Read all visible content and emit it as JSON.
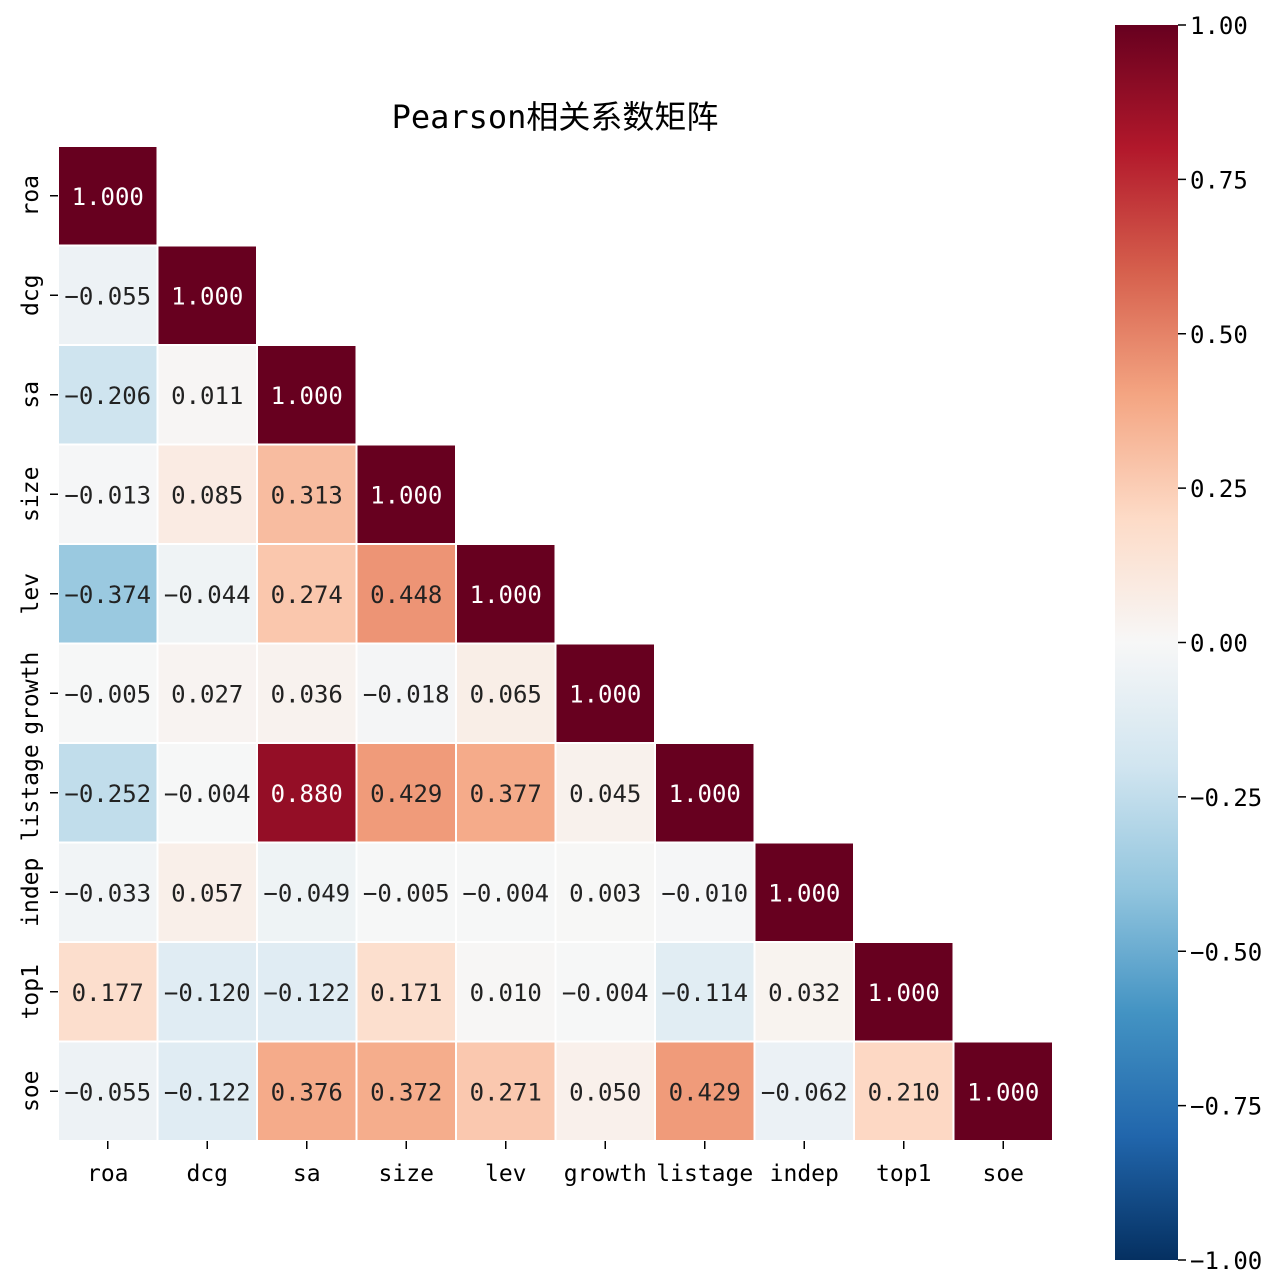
{
  "chart_data": {
    "type": "heatmap",
    "title": "Pearson相关系数矩阵",
    "variables": [
      "roa",
      "dcg",
      "sa",
      "size",
      "lev",
      "growth",
      "listage",
      "indep",
      "top1",
      "soe"
    ],
    "mask": "upper-triangle",
    "values": [
      [
        1.0
      ],
      [
        -0.055,
        1.0
      ],
      [
        -0.206,
        0.011,
        1.0
      ],
      [
        -0.013,
        0.085,
        0.313,
        1.0
      ],
      [
        -0.374,
        -0.044,
        0.274,
        0.448,
        1.0
      ],
      [
        -0.005,
        0.027,
        0.036,
        -0.018,
        0.065,
        1.0
      ],
      [
        -0.252,
        -0.004,
        0.88,
        0.429,
        0.377,
        0.045,
        1.0
      ],
      [
        -0.033,
        0.057,
        -0.049,
        -0.005,
        -0.004,
        0.003,
        -0.01,
        1.0
      ],
      [
        0.177,
        -0.12,
        -0.122,
        0.171,
        0.01,
        -0.004,
        -0.114,
        0.032,
        1.0
      ],
      [
        -0.055,
        -0.122,
        0.376,
        0.372,
        0.271,
        0.05,
        0.429,
        -0.062,
        0.21,
        1.0
      ]
    ],
    "value_format": "3 decimals",
    "colormap": "RdBu_r",
    "vmin": -1.0,
    "vmax": 1.0,
    "colorbar": {
      "position": "right",
      "ticks": [
        1.0,
        0.75,
        0.5,
        0.25,
        0.0,
        -0.25,
        -0.5,
        -0.75,
        -1.0
      ],
      "tick_labels": [
        "1.00",
        "0.75",
        "0.50",
        "0.25",
        "0.00",
        "−0.25",
        "−0.50",
        "−0.75",
        "−1.00"
      ]
    },
    "colors": {
      "dark_red": "#67001f",
      "red": "#b2182b",
      "salmon": "#d6604d",
      "light_salmon": "#f4a582",
      "peach": "#fddbc7",
      "white": "#f7f7f7",
      "light_blue": "#d1e5f0",
      "sky_blue": "#92c5de",
      "blue": "#4393c3",
      "mid_blue": "#2166ac",
      "navy": "#053061",
      "cell_border": "#ffffff"
    }
  }
}
